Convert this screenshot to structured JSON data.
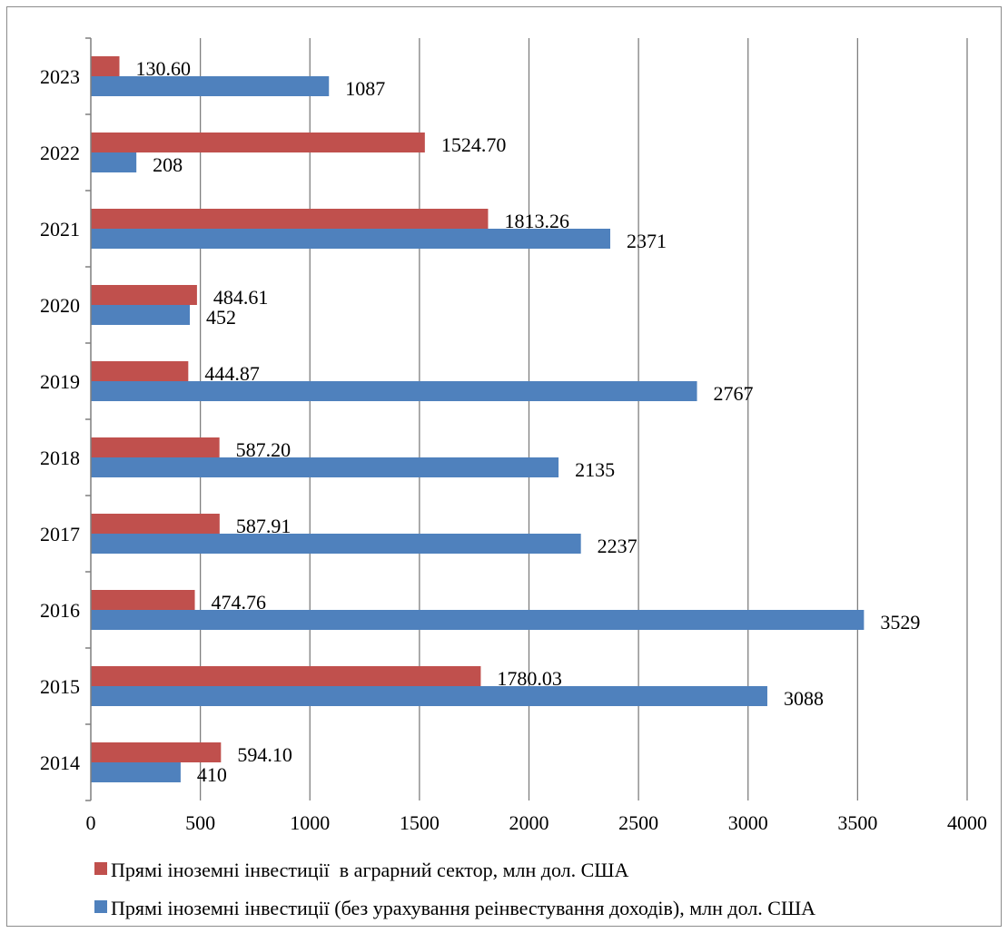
{
  "chart_data": {
    "type": "bar",
    "orientation": "horizontal",
    "categories": [
      "2014",
      "2015",
      "2016",
      "2017",
      "2018",
      "2019",
      "2020",
      "2021",
      "2022",
      "2023"
    ],
    "series": [
      {
        "name": "Прямі іноземні інвестиції  в аграрний сектор, млн дол. США",
        "color": "#c0504d",
        "values": [
          594.1,
          1780.03,
          474.76,
          587.91,
          587.2,
          444.87,
          484.61,
          1813.26,
          1524.7,
          130.6
        ],
        "labels": [
          "594.10",
          "1780.03",
          "474.76",
          "587.91",
          "587.20",
          "444.87",
          "484.61",
          "1813.26",
          "1524.70",
          "130.60"
        ]
      },
      {
        "name": "Прямі іноземні інвестиції (без урахування реінвестування доходів), млн дол. США",
        "color": "#4f81bd",
        "values": [
          410,
          3088,
          3529,
          2237,
          2135,
          2767,
          452,
          2371,
          208,
          1087
        ],
        "labels": [
          "410",
          "3088",
          "3529",
          "2237",
          "2135",
          "2767",
          "452",
          "2371",
          "208",
          "1087"
        ]
      }
    ],
    "xlim": [
      0,
      4000
    ],
    "xticks": [
      "0",
      "500",
      "1000",
      "1500",
      "2000",
      "2500",
      "3000",
      "3500",
      "4000"
    ],
    "grid": true,
    "legend_position": "bottom",
    "title": "",
    "xlabel": "",
    "ylabel": ""
  }
}
